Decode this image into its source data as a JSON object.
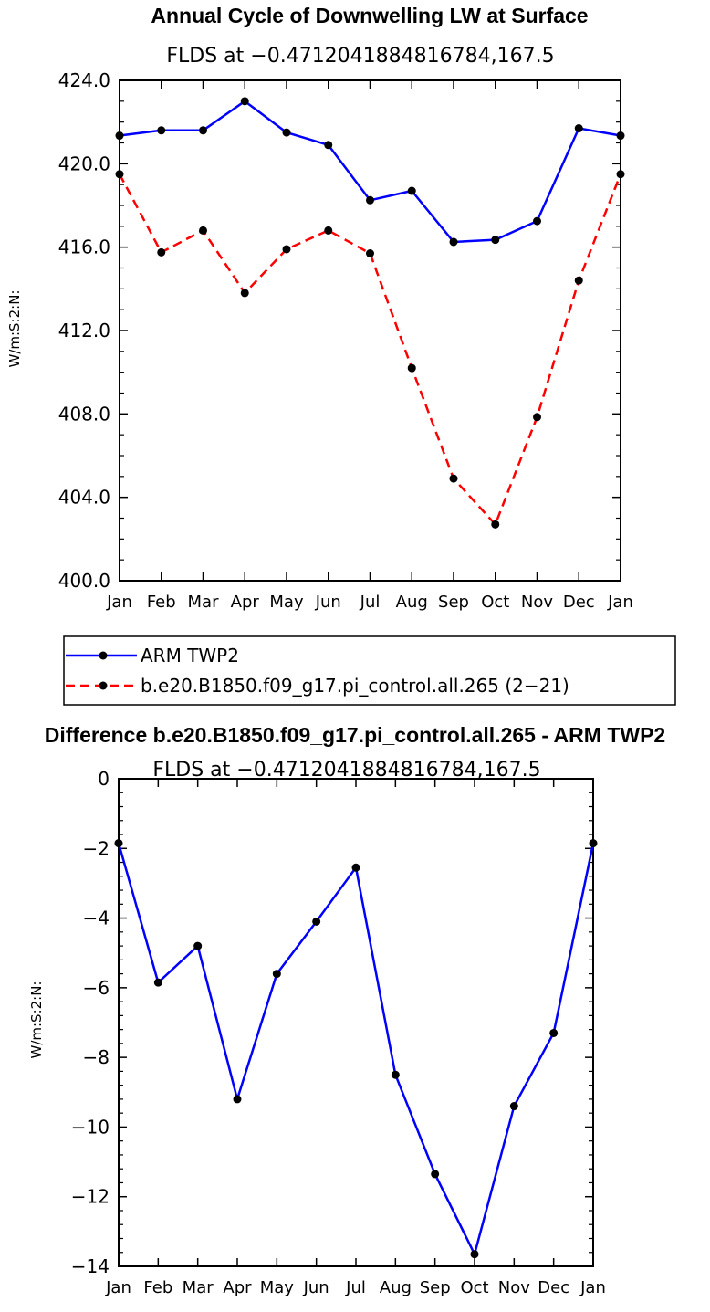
{
  "chart_data": [
    {
      "type": "line",
      "title": "Annual Cycle of Downwelling LW at Surface",
      "subtitle": "FLDS at −0.4712041884816784,167.5",
      "xlabel": "",
      "ylabel": "W/m:S:2:N:",
      "ylim": [
        400,
        424
      ],
      "yticks": [
        "400.0",
        "404.0",
        "408.0",
        "412.0",
        "416.0",
        "420.0",
        "424.0"
      ],
      "categories": [
        "Jan",
        "Feb",
        "Mar",
        "Apr",
        "May",
        "Jun",
        "Jul",
        "Aug",
        "Sep",
        "Oct",
        "Nov",
        "Dec",
        "Jan"
      ],
      "series": [
        {
          "name": "ARM TWP2",
          "color": "#0000ff",
          "dash": "solid",
          "values": [
            421.35,
            421.6,
            421.6,
            423.0,
            421.5,
            420.9,
            418.25,
            418.7,
            416.25,
            416.35,
            417.25,
            421.7,
            421.35
          ]
        },
        {
          "name": "b.e20.B1850.f09_g17.pi_control.all.265 (2−21)",
          "color": "#ff0000",
          "dash": "dashed",
          "values": [
            419.5,
            415.75,
            416.8,
            413.8,
            415.9,
            416.8,
            415.7,
            410.2,
            404.9,
            402.7,
            407.85,
            414.4,
            419.5
          ]
        }
      ],
      "legend": "below"
    },
    {
      "type": "line",
      "title": "Difference b.e20.B1850.f09_g17.pi_control.all.265 - ARM TWP2",
      "subtitle": "FLDS at −0.4712041884816784,167.5",
      "xlabel": "",
      "ylabel": "W/m:S:2:N:",
      "ylim": [
        -14,
        0
      ],
      "yticks": [
        "−14",
        "−12",
        "−10",
        "−8",
        "−6",
        "−4",
        "−2",
        "0"
      ],
      "categories": [
        "Jan",
        "Feb",
        "Mar",
        "Apr",
        "May",
        "Jun",
        "Jul",
        "Aug",
        "Sep",
        "Oct",
        "Nov",
        "Dec",
        "Jan"
      ],
      "series": [
        {
          "name": "Difference",
          "color": "#0000ff",
          "dash": "solid",
          "values": [
            -1.85,
            -5.85,
            -4.8,
            -9.2,
            -5.6,
            -4.1,
            -2.55,
            -8.5,
            -11.35,
            -13.65,
            -9.4,
            -7.3,
            -1.85
          ]
        }
      ]
    }
  ]
}
